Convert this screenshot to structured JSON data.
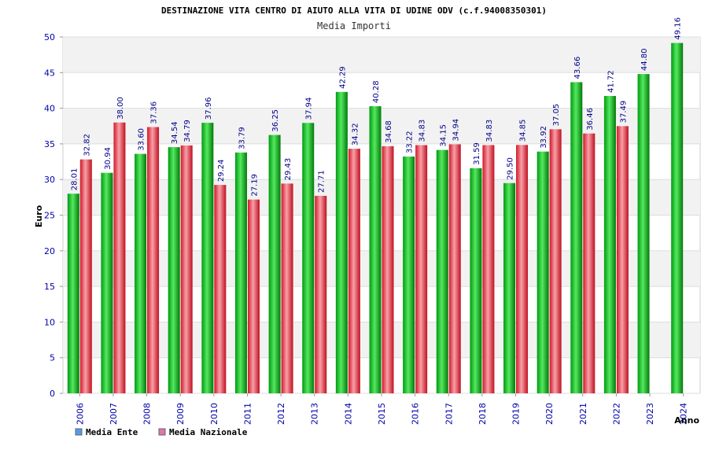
{
  "chart_data": {
    "type": "bar",
    "title": "DESTINAZIONE VITA CENTRO DI AIUTO ALLA VITA DI UDINE ODV (c.f.94008350301)",
    "subtitle": "Media Importi",
    "ylabel": "Euro",
    "xlabel": "Anno",
    "ylim": [
      0,
      50
    ],
    "yticks": [
      "0",
      "5",
      "10",
      "15",
      "20",
      "25",
      "30",
      "35",
      "40",
      "45",
      "50"
    ],
    "grid": true,
    "legend_position": "bottom-left",
    "categories": [
      "2006",
      "2007",
      "2008",
      "2009",
      "2010",
      "2011",
      "2012",
      "2013",
      "2014",
      "2015",
      "2016",
      "2017",
      "2018",
      "2019",
      "2020",
      "2021",
      "2022",
      "2023",
      "2024"
    ],
    "series": [
      {
        "name": "Media Ente",
        "color": "#00b020",
        "legend_color": "#5599ee",
        "values": [
          28.01,
          30.94,
          33.6,
          34.54,
          37.96,
          33.79,
          36.25,
          37.94,
          42.29,
          40.28,
          33.22,
          34.15,
          31.59,
          29.5,
          33.92,
          43.66,
          41.72,
          44.8,
          49.16
        ],
        "labels": [
          "28.01",
          "30.94",
          "33.60",
          "34.54",
          "37.96",
          "33.79",
          "36.25",
          "37.94",
          "42.29",
          "40.28",
          "33.22",
          "34.15",
          "31.59",
          "29.50",
          "33.92",
          "43.66",
          "41.72",
          "44.80",
          "49.16"
        ]
      },
      {
        "name": "Media Nazionale",
        "color": "#e03040",
        "legend_color": "#dd77aa",
        "values": [
          32.82,
          38.0,
          37.36,
          34.79,
          29.24,
          27.19,
          29.43,
          27.71,
          34.32,
          34.68,
          34.83,
          34.94,
          34.83,
          34.85,
          37.05,
          36.46,
          37.49,
          null,
          null
        ],
        "labels": [
          "32.82",
          "38.00",
          "37.36",
          "34.79",
          "29.24",
          "27.19",
          "29.43",
          "27.71",
          "34.32",
          "34.68",
          "34.83",
          "34.94",
          "34.83",
          "34.85",
          "37.05",
          "36.46",
          "37.49",
          null,
          null
        ]
      }
    ]
  }
}
